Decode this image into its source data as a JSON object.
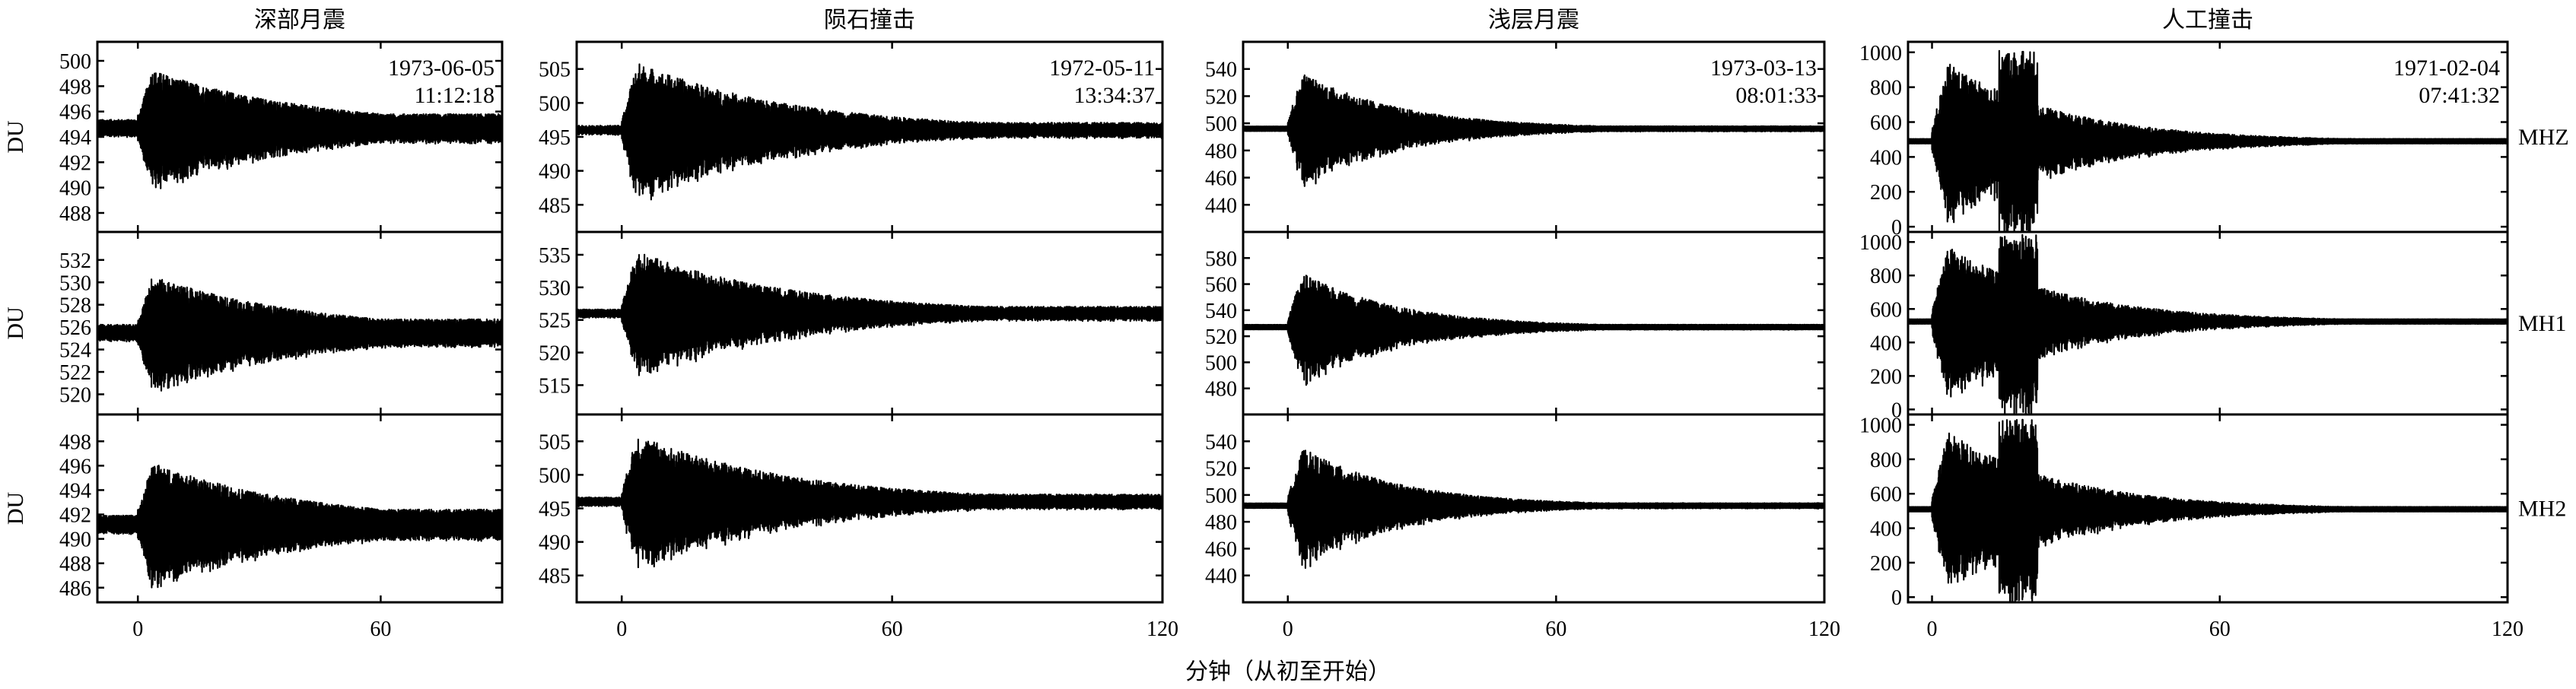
{
  "chart_data": {
    "type": "line",
    "xlabel": "分钟（从初至开始）",
    "channels": [
      "MHZ",
      "MH1",
      "MH2"
    ],
    "ylabel": "DU",
    "events": [
      {
        "title": "深部月震",
        "date": "1973-06-05",
        "time": "11:12:18",
        "xlim": [
          -10,
          90
        ],
        "xticks": [
          0,
          60
        ],
        "decay_minutes": 40,
        "noise_floor": 0.22,
        "panels": [
          {
            "channel": "MHZ",
            "ylim": [
              486.5,
              501.5
            ],
            "yticks": [
              488,
              490,
              492,
              494,
              496,
              498,
              500
            ],
            "baseline": 494.7,
            "peak_amplitude": 5.0
          },
          {
            "channel": "MH1",
            "ylim": [
              518.2,
              534.5
            ],
            "yticks": [
              520,
              522,
              524,
              526,
              528,
              530,
              532
            ],
            "baseline": 525.5,
            "peak_amplitude": 5.5
          },
          {
            "channel": "MH2",
            "ylim": [
              484.8,
              500.2
            ],
            "yticks": [
              486,
              488,
              490,
              492,
              494,
              496,
              498
            ],
            "baseline": 491.2,
            "peak_amplitude": 5.5
          }
        ]
      },
      {
        "title": "陨石撞击",
        "date": "1972-05-11",
        "time": "13:34:37",
        "xlim": [
          -10,
          120
        ],
        "xticks": [
          0,
          60,
          120
        ],
        "decay_minutes": 35,
        "noise_floor": 0.1,
        "panels": [
          {
            "channel": "MHZ",
            "ylim": [
              481,
              509
            ],
            "yticks": [
              485,
              490,
              495,
              500,
              505
            ],
            "baseline": 496,
            "peak_amplitude": 11
          },
          {
            "channel": "MH1",
            "ylim": [
              510.5,
              538.5
            ],
            "yticks": [
              515,
              520,
              525,
              530,
              535
            ],
            "baseline": 526,
            "peak_amplitude": 10.5
          },
          {
            "channel": "MH2",
            "ylim": [
              481,
              509
            ],
            "yticks": [
              485,
              490,
              495,
              500,
              505
            ],
            "baseline": 496,
            "peak_amplitude": 11
          }
        ]
      },
      {
        "title": "浅层月震",
        "date": "1973-03-13",
        "time": "08:01:33",
        "xlim": [
          -10,
          120
        ],
        "xticks": [
          0,
          60,
          120
        ],
        "decay_minutes": 22,
        "noise_floor": 0.04,
        "panels": [
          {
            "channel": "MHZ",
            "ylim": [
              420,
              560
            ],
            "yticks": [
              440,
              460,
              480,
              500,
              520,
              540
            ],
            "baseline": 496,
            "peak_amplitude": 48
          },
          {
            "channel": "MH1",
            "ylim": [
              460,
              600
            ],
            "yticks": [
              480,
              500,
              520,
              540,
              560,
              580
            ],
            "baseline": 527,
            "peak_amplitude": 48
          },
          {
            "channel": "MH2",
            "ylim": [
              420,
              560
            ],
            "yticks": [
              440,
              460,
              480,
              500,
              520,
              540
            ],
            "baseline": 492,
            "peak_amplitude": 50
          }
        ]
      },
      {
        "title": "人工撞击",
        "date": "1971-02-04",
        "time": "07:41:32",
        "xlim": [
          -5,
          120
        ],
        "xticks": [
          0,
          60,
          120
        ],
        "decay_minutes": 24,
        "noise_floor": 0.02,
        "panels": [
          {
            "channel": "MHZ",
            "ylim": [
              -30,
              1060
            ],
            "yticks": [
              0,
              200,
              400,
              600,
              800,
              1000
            ],
            "baseline": 490,
            "peak_amplitude": 520
          },
          {
            "channel": "MH1",
            "ylim": [
              -30,
              1060
            ],
            "yticks": [
              0,
              200,
              400,
              600,
              800,
              1000
            ],
            "baseline": 525,
            "peak_amplitude": 520
          },
          {
            "channel": "MH2",
            "ylim": [
              -30,
              1060
            ],
            "yticks": [
              0,
              200,
              400,
              600,
              800,
              1000
            ],
            "baseline": 510,
            "peak_amplitude": 520
          }
        ]
      }
    ]
  }
}
